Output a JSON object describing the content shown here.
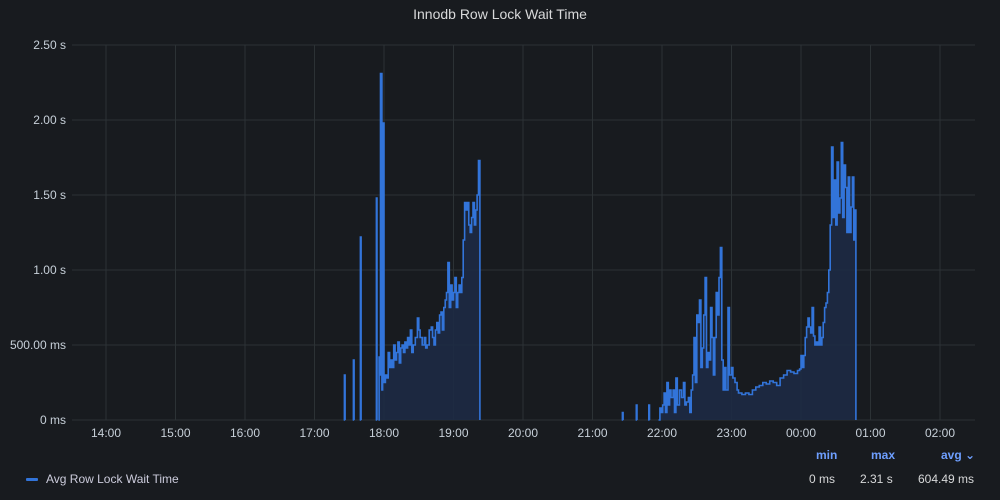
{
  "panel": {
    "title": "Innodb Row Lock Wait Time"
  },
  "colors": {
    "background": "#181b1f",
    "grid": "#2c3235",
    "series_line": "#3274d9",
    "series_fill": "#1d2a44",
    "legend_header": "#6e9fff"
  },
  "legend": {
    "series_label": "Avg Row Lock Wait Time",
    "headers": {
      "min": "min",
      "max": "max",
      "avg": "avg ⌄"
    },
    "values": {
      "min": "0 ms",
      "max": "2.31 s",
      "avg": "604.49 ms"
    }
  },
  "chart_data": {
    "type": "area",
    "title": "Innodb Row Lock Wait Time",
    "x_ticks": [
      "14:00",
      "15:00",
      "16:00",
      "17:00",
      "18:00",
      "19:00",
      "20:00",
      "21:00",
      "22:00",
      "23:00",
      "00:00",
      "01:00",
      "02:00"
    ],
    "y_ticks": [
      "0 ms",
      "500.00 ms",
      "1.00 s",
      "1.50 s",
      "2.00 s",
      "2.50 s"
    ],
    "y_unit": "s",
    "ylim": [
      0,
      2.5
    ],
    "xlim_hours": [
      13.5,
      26.5
    ],
    "grid": true,
    "legend_position": "bottom-left",
    "series": [
      {
        "name": "Avg Row Lock Wait Time",
        "segments": [
          [
            [
              17.42,
              0
            ],
            [
              17.43,
              0.3
            ],
            [
              17.44,
              0
            ]
          ],
          [
            [
              17.55,
              0
            ],
            [
              17.56,
              0.4
            ],
            [
              17.57,
              0
            ]
          ],
          [
            [
              17.65,
              0
            ],
            [
              17.66,
              1.22
            ],
            [
              17.67,
              0
            ]
          ],
          [
            [
              17.88,
              0
            ],
            [
              17.89,
              1.48
            ],
            [
              17.9,
              0
            ]
          ],
          [
            [
              17.92,
              0
            ],
            [
              17.93,
              0.42
            ],
            [
              17.94,
              0.3
            ],
            [
              17.95,
              2.31
            ],
            [
              17.97,
              0.2
            ],
            [
              17.98,
              1.98
            ],
            [
              18.0,
              0.25
            ],
            [
              18.02,
              0.3
            ],
            [
              18.04,
              0.28
            ],
            [
              18.06,
              0.45
            ],
            [
              18.08,
              0.35
            ],
            [
              18.1,
              0.4
            ],
            [
              18.12,
              0.35
            ],
            [
              18.14,
              0.5
            ],
            [
              18.16,
              0.4
            ],
            [
              18.18,
              0.45
            ],
            [
              18.2,
              0.52
            ],
            [
              18.22,
              0.38
            ],
            [
              18.24,
              0.48
            ],
            [
              18.26,
              0.5
            ],
            [
              18.28,
              0.45
            ],
            [
              18.3,
              0.52
            ],
            [
              18.32,
              0.48
            ],
            [
              18.34,
              0.55
            ],
            [
              18.36,
              0.5
            ],
            [
              18.38,
              0.6
            ],
            [
              18.4,
              0.45
            ],
            [
              18.42,
              0.5
            ],
            [
              18.45,
              0.55
            ],
            [
              18.48,
              0.68
            ],
            [
              18.5,
              0.6
            ],
            [
              18.52,
              0.55
            ],
            [
              18.55,
              0.5
            ],
            [
              18.58,
              0.55
            ],
            [
              18.6,
              0.48
            ],
            [
              18.62,
              0.5
            ],
            [
              18.65,
              0.6
            ],
            [
              18.68,
              0.62
            ],
            [
              18.7,
              0.55
            ],
            [
              18.72,
              0.5
            ],
            [
              18.74,
              0.6
            ],
            [
              18.76,
              0.65
            ],
            [
              18.78,
              0.58
            ],
            [
              18.8,
              0.7
            ],
            [
              18.82,
              0.72
            ],
            [
              18.84,
              0.6
            ],
            [
              18.86,
              0.75
            ],
            [
              18.88,
              0.8
            ],
            [
              18.9,
              0.85
            ],
            [
              18.92,
              1.05
            ],
            [
              18.94,
              0.75
            ],
            [
              18.96,
              0.9
            ],
            [
              18.98,
              0.8
            ],
            [
              19.0,
              0.85
            ],
            [
              19.02,
              0.95
            ],
            [
              19.04,
              0.75
            ],
            [
              19.06,
              0.85
            ],
            [
              19.08,
              0.9
            ],
            [
              19.1,
              0.85
            ],
            [
              19.12,
              0.95
            ],
            [
              19.14,
              1.2
            ],
            [
              19.16,
              1.45
            ],
            [
              19.18,
              1.4
            ],
            [
              19.2,
              1.45
            ],
            [
              19.22,
              1.3
            ],
            [
              19.24,
              1.25
            ],
            [
              19.26,
              1.35
            ],
            [
              19.28,
              1.45
            ],
            [
              19.3,
              1.3
            ],
            [
              19.32,
              1.4
            ],
            [
              19.34,
              1.5
            ],
            [
              19.36,
              1.73
            ],
            [
              19.38,
              1.25
            ],
            [
              19.38,
              0
            ]
          ],
          [
            [
              21.42,
              0
            ],
            [
              21.43,
              0.05
            ],
            [
              21.44,
              0
            ]
          ],
          [
            [
              21.62,
              0
            ],
            [
              21.63,
              0.1
            ],
            [
              21.64,
              0
            ]
          ],
          [
            [
              21.8,
              0
            ],
            [
              21.81,
              0.1
            ],
            [
              21.82,
              0
            ]
          ],
          [
            [
              21.95,
              0
            ],
            [
              21.97,
              0.08
            ],
            [
              21.99,
              0.05
            ],
            [
              22.01,
              0.1
            ],
            [
              22.03,
              0.18
            ],
            [
              22.05,
              0.05
            ],
            [
              22.07,
              0.25
            ],
            [
              22.09,
              0.1
            ],
            [
              22.11,
              0.2
            ],
            [
              22.13,
              0.15
            ],
            [
              22.16,
              0.2
            ],
            [
              22.18,
              0.05
            ],
            [
              22.2,
              0.28
            ],
            [
              22.22,
              0.1
            ],
            [
              22.25,
              0.2
            ],
            [
              22.28,
              0.15
            ],
            [
              22.31,
              0.25
            ],
            [
              22.33,
              0.1
            ],
            [
              22.35,
              0.12
            ],
            [
              22.38,
              0.15
            ],
            [
              22.4,
              0.05
            ],
            [
              22.42,
              0.2
            ],
            [
              22.44,
              0.3
            ],
            [
              22.46,
              0.55
            ],
            [
              22.48,
              0.25
            ],
            [
              22.5,
              0.7
            ],
            [
              22.52,
              0.65
            ],
            [
              22.54,
              0.8
            ],
            [
              22.56,
              0.35
            ],
            [
              22.58,
              0.48
            ],
            [
              22.6,
              0.7
            ],
            [
              22.62,
              0.95
            ],
            [
              22.64,
              0.35
            ],
            [
              22.66,
              0.45
            ],
            [
              22.68,
              0.4
            ],
            [
              22.7,
              0.75
            ],
            [
              22.72,
              0.55
            ],
            [
              22.74,
              0.3
            ],
            [
              22.76,
              0.55
            ],
            [
              22.78,
              0.85
            ],
            [
              22.8,
              0.7
            ],
            [
              22.82,
              0.95
            ],
            [
              22.84,
              1.15
            ],
            [
              22.86,
              0.4
            ],
            [
              22.88,
              0.2
            ],
            [
              22.9,
              0.35
            ],
            [
              22.92,
              0.2
            ],
            [
              22.95,
              0.75
            ],
            [
              22.97,
              0.3
            ],
            [
              23.0,
              0.35
            ],
            [
              23.02,
              0.28
            ],
            [
              23.05,
              0.25
            ],
            [
              23.08,
              0.2
            ],
            [
              23.1,
              0.18
            ],
            [
              23.15,
              0.17
            ],
            [
              23.2,
              0.18
            ],
            [
              23.25,
              0.17
            ],
            [
              23.3,
              0.2
            ],
            [
              23.35,
              0.22
            ],
            [
              23.4,
              0.23
            ],
            [
              23.45,
              0.25
            ],
            [
              23.5,
              0.24
            ],
            [
              23.55,
              0.26
            ],
            [
              23.6,
              0.25
            ],
            [
              23.65,
              0.23
            ],
            [
              23.7,
              0.28
            ],
            [
              23.75,
              0.3
            ],
            [
              23.8,
              0.33
            ],
            [
              23.85,
              0.32
            ],
            [
              23.9,
              0.31
            ],
            [
              23.95,
              0.33
            ],
            [
              23.98,
              0.34
            ],
            [
              24.0,
              0.43
            ],
            [
              24.02,
              0.35
            ],
            [
              24.04,
              0.43
            ],
            [
              24.06,
              0.55
            ],
            [
              24.08,
              0.62
            ],
            [
              24.1,
              0.68
            ],
            [
              24.12,
              0.62
            ],
            [
              24.14,
              0.58
            ],
            [
              24.16,
              0.75
            ],
            [
              24.18,
              0.56
            ],
            [
              24.2,
              0.5
            ],
            [
              24.22,
              0.52
            ],
            [
              24.24,
              0.5
            ],
            [
              24.26,
              0.62
            ],
            [
              24.28,
              0.5
            ],
            [
              24.3,
              0.55
            ],
            [
              24.32,
              0.65
            ],
            [
              24.34,
              0.75
            ],
            [
              24.36,
              0.78
            ],
            [
              24.38,
              0.85
            ],
            [
              24.4,
              1.0
            ],
            [
              24.42,
              1.3
            ],
            [
              24.44,
              1.82
            ],
            [
              24.46,
              1.35
            ],
            [
              24.48,
              1.6
            ],
            [
              24.5,
              1.3
            ],
            [
              24.52,
              1.72
            ],
            [
              24.54,
              1.38
            ],
            [
              24.56,
              1.48
            ],
            [
              24.58,
              1.85
            ],
            [
              24.6,
              1.35
            ],
            [
              24.62,
              1.7
            ],
            [
              24.64,
              1.55
            ],
            [
              24.66,
              1.25
            ],
            [
              24.68,
              1.62
            ],
            [
              24.7,
              1.25
            ],
            [
              24.72,
              1.42
            ],
            [
              24.74,
              1.62
            ],
            [
              24.76,
              1.2
            ],
            [
              24.78,
              1.4
            ],
            [
              24.79,
              1.2
            ],
            [
              24.79,
              0
            ]
          ]
        ]
      }
    ]
  }
}
